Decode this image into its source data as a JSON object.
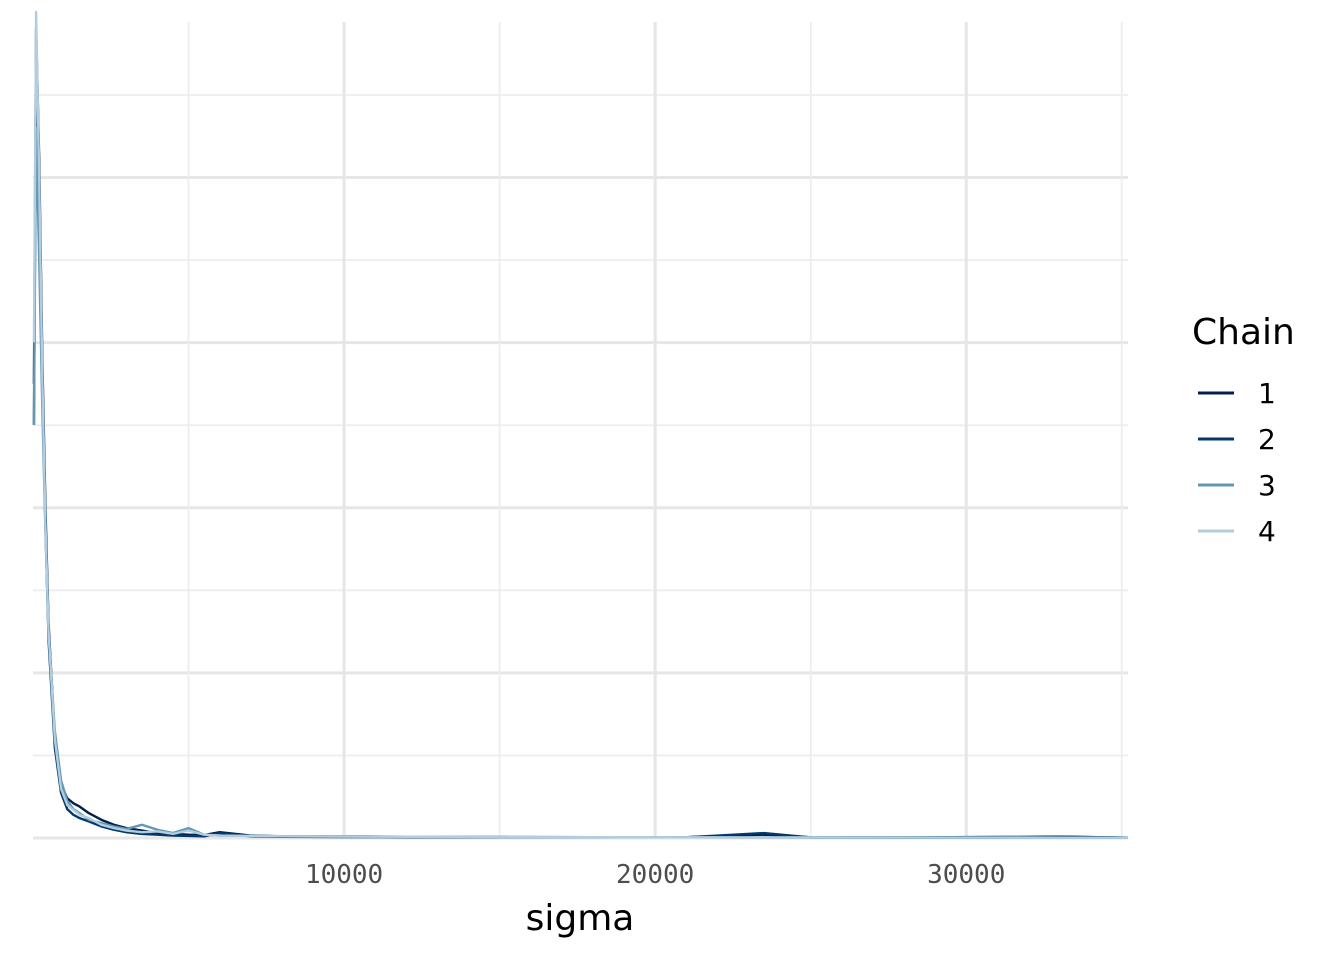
{
  "chart_data": {
    "type": "line",
    "title": "",
    "xlabel": "sigma",
    "ylabel": "",
    "xlim": [
      0,
      35200
    ],
    "ylim": [
      0,
      1
    ],
    "x_ticks": [
      10000,
      20000,
      30000
    ],
    "x_tick_labels": [
      "10000",
      "20000",
      "30000"
    ],
    "grid": true,
    "y_tick_labels_shown": false,
    "legend": {
      "title": "Chain",
      "placement": "right"
    },
    "series": [
      {
        "name": "1",
        "color": "#011f4b",
        "x": [
          30,
          100,
          200,
          300,
          400,
          500,
          700,
          900,
          1100,
          1300,
          1500,
          1800,
          2200,
          2600,
          3000,
          3500,
          4000,
          4500,
          5000,
          5500,
          6000,
          7000,
          8000,
          10000,
          12000,
          15000,
          18000,
          21000,
          23500,
          25000,
          28000,
          31000,
          33000,
          35200
        ],
        "y": [
          0.55,
          0.98,
          0.82,
          0.58,
          0.4,
          0.26,
          0.12,
          0.065,
          0.048,
          0.042,
          0.038,
          0.03,
          0.022,
          0.016,
          0.012,
          0.009,
          0.006,
          0.005,
          0.004,
          0.0035,
          0.007,
          0.003,
          0.002,
          0.002,
          0.0015,
          0.0012,
          0.001,
          0.001,
          0.004,
          0.0008,
          0.0006,
          0.0012,
          0.0015,
          0.0005
        ]
      },
      {
        "name": "2",
        "color": "#03396c",
        "x": [
          30,
          100,
          200,
          300,
          400,
          500,
          700,
          900,
          1100,
          1300,
          1500,
          1800,
          2200,
          2600,
          3000,
          3500,
          4000,
          4500,
          5000,
          5500,
          6000,
          7000,
          8000,
          10000,
          12000,
          15000,
          18000,
          21000,
          23500,
          25000,
          28000,
          31000,
          33000,
          35200
        ],
        "y": [
          0.5,
          0.95,
          0.78,
          0.55,
          0.38,
          0.24,
          0.11,
          0.055,
          0.035,
          0.028,
          0.024,
          0.02,
          0.014,
          0.01,
          0.007,
          0.005,
          0.004,
          0.003,
          0.0025,
          0.002,
          0.006,
          0.002,
          0.0015,
          0.0012,
          0.001,
          0.0009,
          0.0008,
          0.0008,
          0.006,
          0.0006,
          0.0005,
          0.0005,
          0.0015,
          0.0004
        ]
      },
      {
        "name": "3",
        "color": "#6497b1",
        "x": [
          30,
          100,
          200,
          300,
          400,
          500,
          700,
          900,
          1100,
          1300,
          1500,
          1800,
          2200,
          2600,
          3000,
          3500,
          4000,
          4500,
          5000,
          5500,
          6000,
          7000,
          8000,
          10000,
          12000,
          15000,
          18000,
          21000,
          23500,
          25000,
          28000,
          31000,
          33000,
          35200
        ],
        "y": [
          0.5,
          0.86,
          0.7,
          0.52,
          0.37,
          0.25,
          0.13,
          0.07,
          0.045,
          0.035,
          0.03,
          0.022,
          0.018,
          0.014,
          0.011,
          0.016,
          0.01,
          0.006,
          0.012,
          0.004,
          0.003,
          0.0025,
          0.002,
          0.0018,
          0.0015,
          0.0012,
          0.001,
          0.0008,
          0.0007,
          0.0006,
          0.0005,
          0.0005,
          0.0004,
          0.0004
        ]
      },
      {
        "name": "4",
        "color": "#b3cde0",
        "x": [
          30,
          100,
          200,
          300,
          400,
          500,
          700,
          900,
          1100,
          1300,
          1500,
          1800,
          2200,
          2600,
          3000,
          3500,
          4000,
          4500,
          5000,
          5500,
          6000,
          7000,
          8000,
          10000,
          12000,
          15000,
          18000,
          21000,
          23500,
          25000,
          28000,
          31000,
          33000,
          35200
        ],
        "y": [
          0.6,
          1.0,
          0.8,
          0.56,
          0.38,
          0.25,
          0.12,
          0.06,
          0.04,
          0.034,
          0.028,
          0.024,
          0.016,
          0.012,
          0.009,
          0.007,
          0.008,
          0.005,
          0.009,
          0.004,
          0.003,
          0.0025,
          0.002,
          0.0018,
          0.0015,
          0.0012,
          0.001,
          0.0008,
          0.0007,
          0.0006,
          0.0005,
          0.0005,
          0.0004,
          0.0004
        ]
      }
    ]
  }
}
